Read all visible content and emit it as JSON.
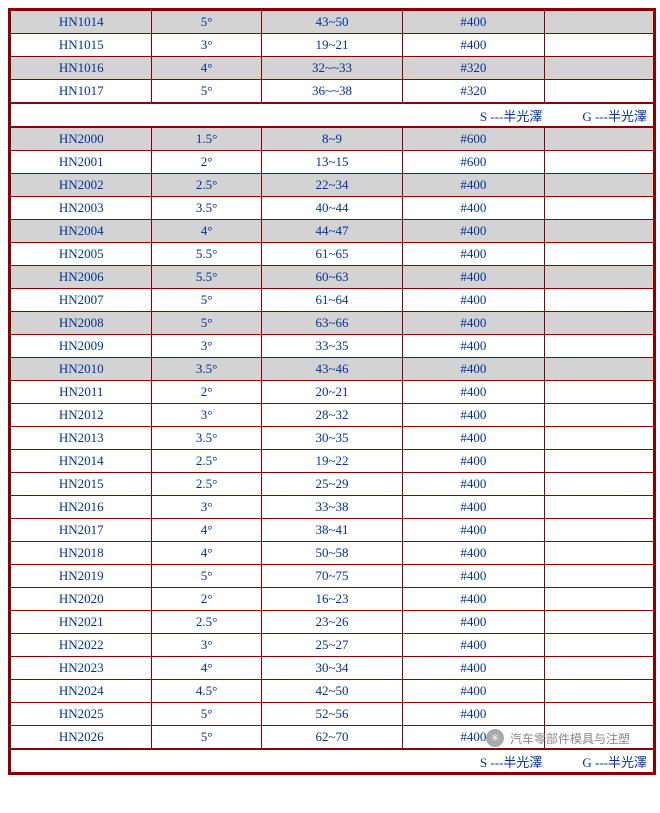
{
  "col_widths_pct": [
    22,
    17,
    22,
    22,
    17
  ],
  "rows": [
    {
      "type": "data",
      "shaded": true,
      "c": [
        "HN1014",
        "5°",
        "43~50",
        "#400",
        ""
      ]
    },
    {
      "type": "data",
      "shaded": false,
      "c": [
        "HN1015",
        "3°",
        "19~21",
        "#400",
        ""
      ]
    },
    {
      "type": "data",
      "shaded": true,
      "c": [
        "HN1016",
        "4°",
        "32~~33",
        "#320",
        ""
      ]
    },
    {
      "type": "data",
      "shaded": false,
      "thick_bottom": true,
      "c": [
        "HN1017",
        "5°",
        "36~~38",
        "#320",
        ""
      ]
    },
    {
      "type": "legend",
      "legend_s": "S ---半光澤",
      "legend_g": "G ---半光澤"
    },
    {
      "type": "data",
      "shaded": true,
      "thick_top": true,
      "c": [
        "HN2000",
        "1.5°",
        "8~9",
        "#600",
        ""
      ]
    },
    {
      "type": "data",
      "shaded": false,
      "c": [
        "HN2001",
        "2°",
        "13~15",
        "#600",
        ""
      ]
    },
    {
      "type": "data",
      "shaded": true,
      "c": [
        "HN2002",
        "2.5°",
        "22~34",
        "#400",
        ""
      ]
    },
    {
      "type": "data",
      "shaded": false,
      "c": [
        "HN2003",
        "3.5°",
        "40~44",
        "#400",
        ""
      ]
    },
    {
      "type": "data",
      "shaded": true,
      "c": [
        "HN2004",
        "4°",
        "44~47",
        "#400",
        ""
      ]
    },
    {
      "type": "data",
      "shaded": false,
      "c": [
        "HN2005",
        "5.5°",
        "61~65",
        "#400",
        ""
      ]
    },
    {
      "type": "data",
      "shaded": true,
      "c": [
        "HN2006",
        "5.5°",
        "60~63",
        "#400",
        ""
      ]
    },
    {
      "type": "data",
      "shaded": false,
      "c": [
        "HN2007",
        "5°",
        "61~64",
        "#400",
        ""
      ]
    },
    {
      "type": "data",
      "shaded": true,
      "c": [
        "HN2008",
        "5°",
        "63~66",
        "#400",
        ""
      ]
    },
    {
      "type": "data",
      "shaded": false,
      "c": [
        "HN2009",
        "3°",
        "33~35",
        "#400",
        ""
      ]
    },
    {
      "type": "data",
      "shaded": true,
      "c": [
        "HN2010",
        "3.5°",
        "43~46",
        "#400",
        ""
      ]
    },
    {
      "type": "data",
      "shaded": false,
      "c": [
        "HN2011",
        "2°",
        "20~21",
        "#400",
        ""
      ]
    },
    {
      "type": "data",
      "shaded": false,
      "c": [
        "HN2012",
        "3°",
        "28~32",
        "#400",
        ""
      ]
    },
    {
      "type": "data",
      "shaded": false,
      "c": [
        "HN2013",
        "3.5°",
        "30~35",
        "#400",
        ""
      ]
    },
    {
      "type": "data",
      "shaded": false,
      "c": [
        "HN2014",
        "2.5°",
        "19~22",
        "#400",
        ""
      ]
    },
    {
      "type": "data",
      "shaded": false,
      "c": [
        "HN2015",
        "2.5°",
        "25~29",
        "#400",
        ""
      ]
    },
    {
      "type": "data",
      "shaded": false,
      "c": [
        "HN2016",
        "3°",
        "33~38",
        "#400",
        ""
      ]
    },
    {
      "type": "data",
      "shaded": false,
      "c": [
        "HN2017",
        "4°",
        "38~41",
        "#400",
        ""
      ]
    },
    {
      "type": "data",
      "shaded": false,
      "c": [
        "HN2018",
        "4°",
        "50~58",
        "#400",
        ""
      ]
    },
    {
      "type": "data",
      "shaded": false,
      "c": [
        "HN2019",
        "5°",
        "70~75",
        "#400",
        ""
      ]
    },
    {
      "type": "data",
      "shaded": false,
      "c": [
        "HN2020",
        "2°",
        "16~23",
        "#400",
        ""
      ]
    },
    {
      "type": "data",
      "shaded": false,
      "c": [
        "HN2021",
        "2.5°",
        "23~26",
        "#400",
        ""
      ]
    },
    {
      "type": "data",
      "shaded": false,
      "c": [
        "HN2022",
        "3°",
        "25~27",
        "#400",
        ""
      ]
    },
    {
      "type": "data",
      "shaded": false,
      "c": [
        "HN2023",
        "4°",
        "30~34",
        "#400",
        ""
      ]
    },
    {
      "type": "data",
      "shaded": false,
      "c": [
        "HN2024",
        "4.5°",
        "42~50",
        "#400",
        ""
      ]
    },
    {
      "type": "data",
      "shaded": false,
      "c": [
        "HN2025",
        "5°",
        "52~56",
        "#400",
        ""
      ]
    },
    {
      "type": "data",
      "shaded": false,
      "thick_bottom": true,
      "c": [
        "HN2026",
        "5°",
        "62~70",
        "#400",
        ""
      ]
    },
    {
      "type": "legend",
      "legend_s": "S ---半光澤",
      "legend_g": "G ---半光澤"
    }
  ],
  "watermark": "汽车零部件模具与注塑",
  "watermark_icon": "✳"
}
